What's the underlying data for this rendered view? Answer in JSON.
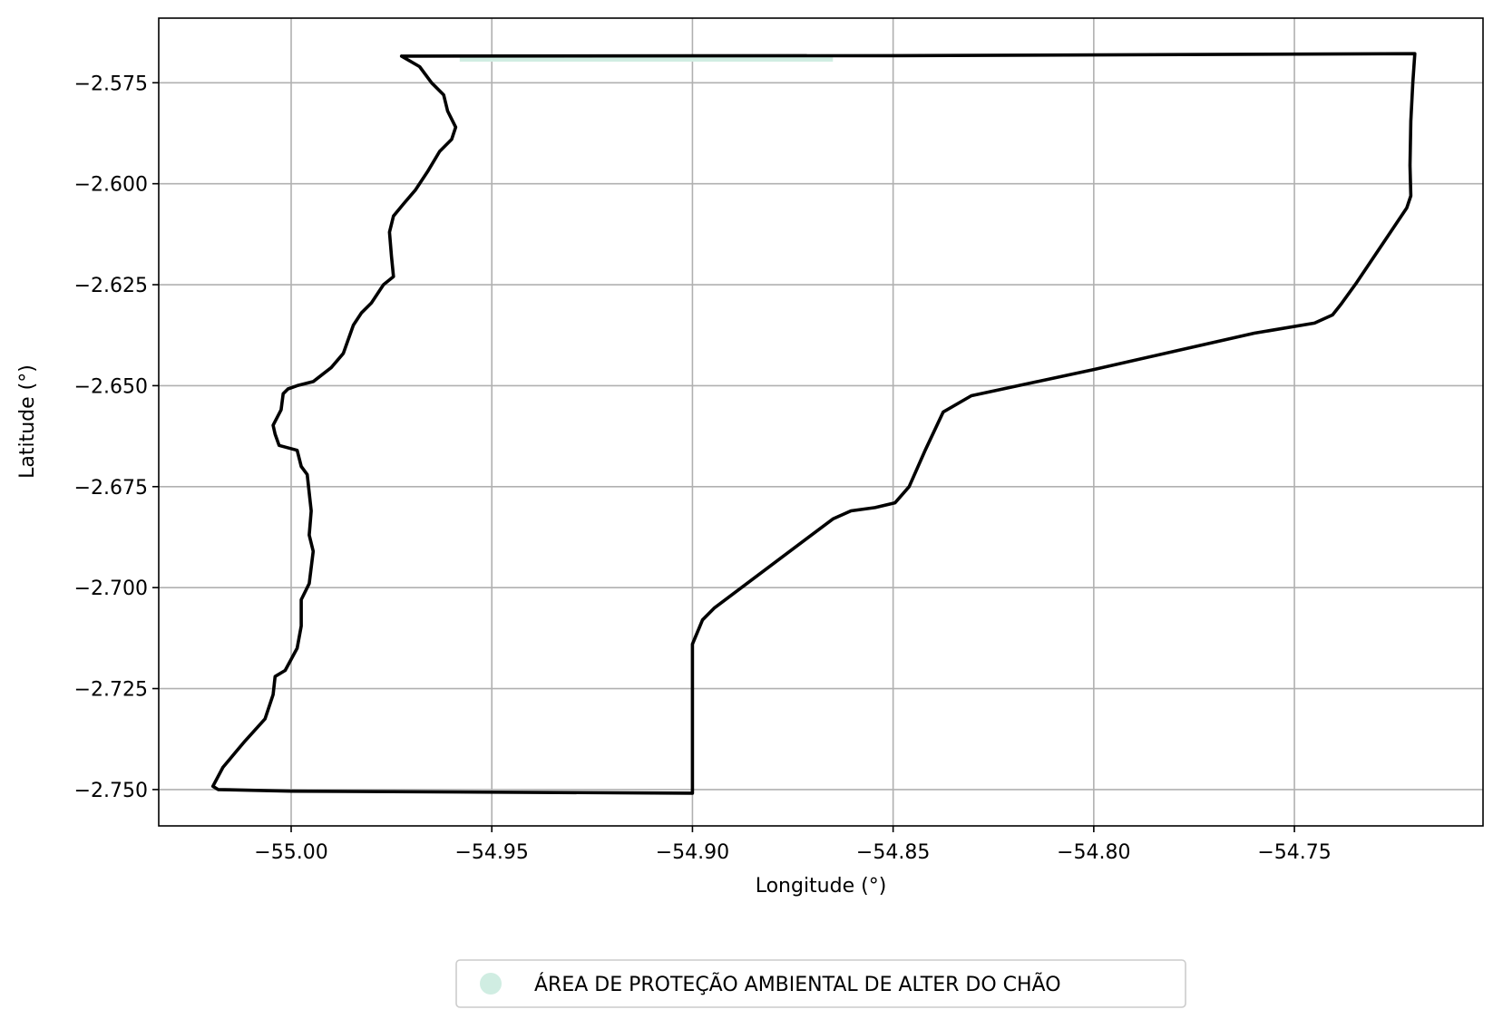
{
  "chart_data": {
    "type": "map",
    "xlabel": "Longitude (°)",
    "ylabel": "Latitude (°)",
    "xlim": [
      -55.033,
      -54.703
    ],
    "ylim": [
      -2.759,
      -2.559
    ],
    "grid": true,
    "x_ticks": [
      -55.0,
      -54.95,
      -54.9,
      -54.85,
      -54.8,
      -54.75
    ],
    "x_tick_labels": [
      "−55.00",
      "−54.95",
      "−54.90",
      "−54.85",
      "−54.80",
      "−54.75"
    ],
    "y_ticks": [
      -2.575,
      -2.6,
      -2.625,
      -2.65,
      -2.675,
      -2.7,
      -2.725,
      -2.75
    ],
    "y_tick_labels": [
      "−2.575",
      "−2.600",
      "−2.625",
      "−2.650",
      "−2.675",
      "−2.700",
      "−2.725",
      "−2.750"
    ],
    "boundary": {
      "stroke": "#000000",
      "points": [
        [
          -54.9725,
          -2.5684
        ],
        [
          -54.85,
          -2.5683
        ],
        [
          -54.72,
          -2.5678
        ],
        [
          -54.7205,
          -2.575
        ],
        [
          -54.721,
          -2.5845
        ],
        [
          -54.7212,
          -2.5955
        ],
        [
          -54.721,
          -2.603
        ],
        [
          -54.722,
          -2.606
        ],
        [
          -54.7345,
          -2.6245
        ],
        [
          -54.7385,
          -2.63
        ],
        [
          -54.7405,
          -2.6325
        ],
        [
          -54.745,
          -2.6345
        ],
        [
          -54.76,
          -2.637
        ],
        [
          -54.8,
          -2.646
        ],
        [
          -54.8305,
          -2.6525
        ],
        [
          -54.8375,
          -2.6565
        ],
        [
          -54.842,
          -2.666
        ],
        [
          -54.846,
          -2.675
        ],
        [
          -54.8495,
          -2.679
        ],
        [
          -54.8545,
          -2.6802
        ],
        [
          -54.8605,
          -2.681
        ],
        [
          -54.865,
          -2.683
        ],
        [
          -54.8945,
          -2.705
        ],
        [
          -54.8975,
          -2.708
        ],
        [
          -54.9,
          -2.714
        ],
        [
          -54.9,
          -2.7509
        ],
        [
          -55.0,
          -2.7504
        ],
        [
          -55.0182,
          -2.75
        ],
        [
          -55.0195,
          -2.7492
        ],
        [
          -55.017,
          -2.7445
        ],
        [
          -55.0115,
          -2.738
        ],
        [
          -55.0065,
          -2.7325
        ],
        [
          -55.0045,
          -2.7265
        ],
        [
          -55.004,
          -2.722
        ],
        [
          -55.0015,
          -2.7205
        ],
        [
          -54.9985,
          -2.715
        ],
        [
          -54.9975,
          -2.7095
        ],
        [
          -54.9975,
          -2.703
        ],
        [
          -54.9955,
          -2.699
        ],
        [
          -54.9945,
          -2.691
        ],
        [
          -54.9955,
          -2.687
        ],
        [
          -54.995,
          -2.681
        ],
        [
          -54.9955,
          -2.6765
        ],
        [
          -54.996,
          -2.672
        ],
        [
          -54.9975,
          -2.67
        ],
        [
          -54.9985,
          -2.666
        ],
        [
          -55.003,
          -2.6648
        ],
        [
          -55.004,
          -2.662
        ],
        [
          -55.0045,
          -2.6598
        ],
        [
          -55.0025,
          -2.656
        ],
        [
          -55.002,
          -2.652
        ],
        [
          -55.0008,
          -2.6508
        ],
        [
          -54.9985,
          -2.65
        ],
        [
          -54.9945,
          -2.649
        ],
        [
          -54.99,
          -2.6455
        ],
        [
          -54.987,
          -2.642
        ],
        [
          -54.9845,
          -2.635
        ],
        [
          -54.9825,
          -2.632
        ],
        [
          -54.98,
          -2.6295
        ],
        [
          -54.977,
          -2.625
        ],
        [
          -54.9745,
          -2.623
        ],
        [
          -54.975,
          -2.618
        ],
        [
          -54.9755,
          -2.612
        ],
        [
          -54.9745,
          -2.608
        ],
        [
          -54.972,
          -2.605
        ],
        [
          -54.969,
          -2.6015
        ],
        [
          -54.966,
          -2.597
        ],
        [
          -54.963,
          -2.592
        ],
        [
          -54.96,
          -2.589
        ],
        [
          -54.959,
          -2.586
        ],
        [
          -54.961,
          -2.582
        ],
        [
          -54.962,
          -2.578
        ],
        [
          -54.965,
          -2.575
        ],
        [
          -54.968,
          -2.571
        ],
        [
          -54.9725,
          -2.5684
        ]
      ]
    },
    "highlight_strip": {
      "color": "#d0ede2",
      "x": [
        -54.958,
        -54.865
      ],
      "y": -2.5692
    },
    "legend": {
      "placement": "bottom-center",
      "marker_color": "#d0ede2",
      "label": "ÁREA DE PROTEÇÃO AMBIENTAL DE ALTER DO CHÃO"
    }
  }
}
